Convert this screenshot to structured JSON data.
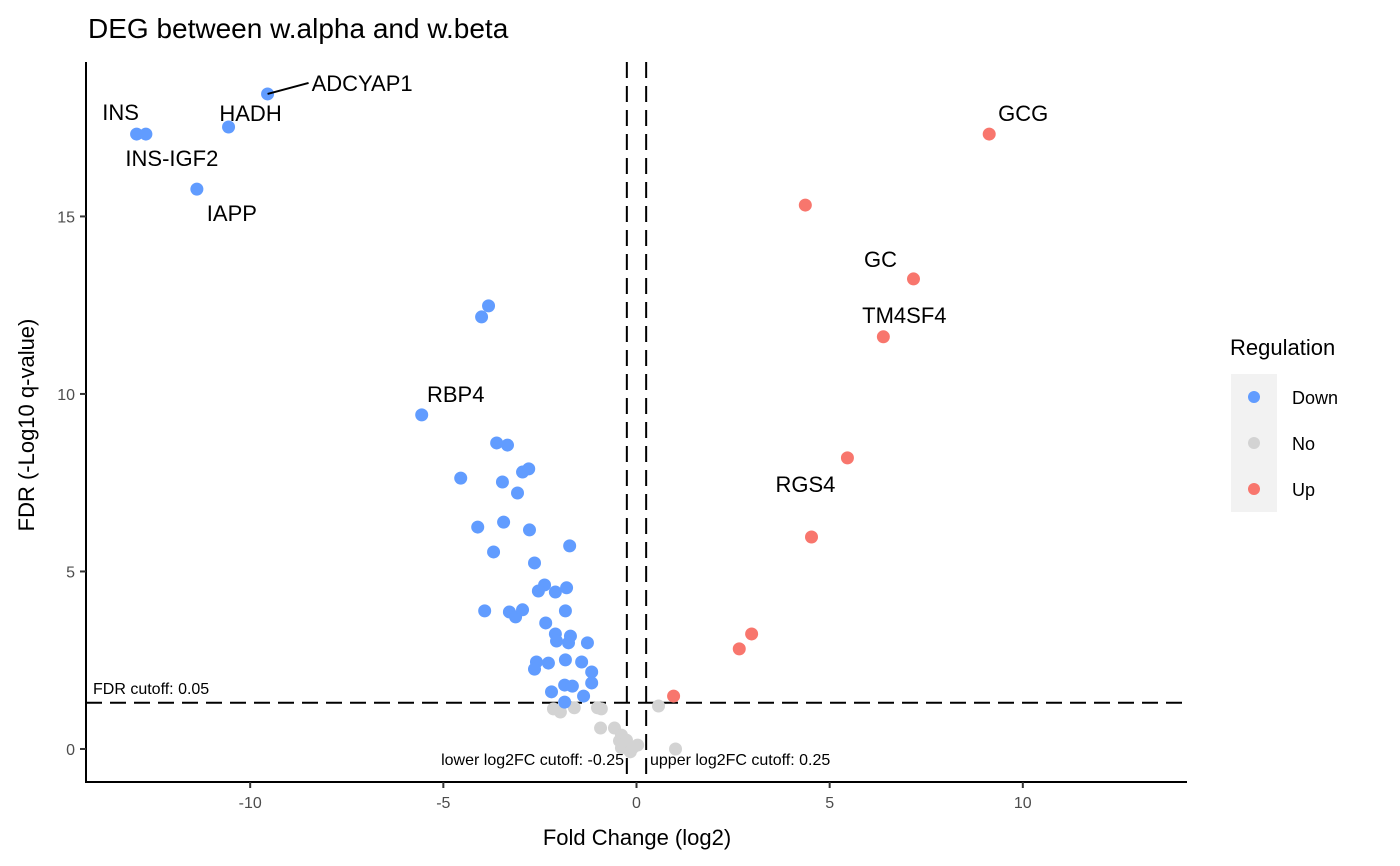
{
  "chart_data": {
    "type": "scatter",
    "title": "DEG between w.alpha and w.beta",
    "xlabel": "Fold Change (log2)",
    "ylabel": "FDR (-Log10 q-value)",
    "xlim": [
      -14.25,
      14.25
    ],
    "ylim": [
      -0.93,
      19.35
    ],
    "x_ticks": [
      -10,
      -5,
      0,
      5,
      10
    ],
    "x_tick_labels": [
      "-10",
      "-5",
      "0",
      "5",
      "10"
    ],
    "y_ticks": [
      0,
      5,
      10,
      15
    ],
    "y_tick_labels": [
      "0",
      "5",
      "10",
      "15"
    ],
    "grid": false,
    "cutoffs": {
      "fdr": {
        "value": 1.301,
        "label": "FDR cutoff: 0.05"
      },
      "lower": {
        "value": -0.25,
        "label": "lower log2FC cutoff: -0.25"
      },
      "upper": {
        "value": 0.25,
        "label": "upper log2FC cutoff: 0.25"
      }
    },
    "legend": {
      "title": "Regulation",
      "position": "right",
      "entries": [
        {
          "label": "Down",
          "color": "#619CFF"
        },
        {
          "label": "No",
          "color": "#D3D3D3"
        },
        {
          "label": "Up",
          "color": "#F8766D"
        }
      ]
    },
    "series": [
      {
        "name": "Down",
        "color": "#619CFF",
        "points": [
          {
            "x": -9.55,
            "y": 18.45,
            "label": "ADCYAP1"
          },
          {
            "x": -10.56,
            "y": 17.52,
            "label": "HADH"
          },
          {
            "x": -12.94,
            "y": 17.32,
            "label": "INS"
          },
          {
            "x": -12.7,
            "y": 17.32,
            "label": "INS-IGF2"
          },
          {
            "x": -11.38,
            "y": 15.77,
            "label": "IAPP"
          },
          {
            "x": -5.56,
            "y": 9.41,
            "label": "RBP4"
          },
          {
            "x": -3.83,
            "y": 12.48
          },
          {
            "x": -4.01,
            "y": 12.17
          },
          {
            "x": -3.62,
            "y": 8.62
          },
          {
            "x": -3.34,
            "y": 8.56
          },
          {
            "x": -4.55,
            "y": 7.63
          },
          {
            "x": -3.47,
            "y": 7.52
          },
          {
            "x": -2.95,
            "y": 7.8
          },
          {
            "x": -2.79,
            "y": 7.89
          },
          {
            "x": -3.08,
            "y": 7.21
          },
          {
            "x": -4.11,
            "y": 6.25
          },
          {
            "x": -3.44,
            "y": 6.39
          },
          {
            "x": -2.77,
            "y": 6.17
          },
          {
            "x": -1.73,
            "y": 5.72
          },
          {
            "x": -3.7,
            "y": 5.55
          },
          {
            "x": -2.64,
            "y": 5.24
          },
          {
            "x": -2.38,
            "y": 4.62
          },
          {
            "x": -2.54,
            "y": 4.45
          },
          {
            "x": -2.1,
            "y": 4.42
          },
          {
            "x": -1.81,
            "y": 4.54
          },
          {
            "x": -3.93,
            "y": 3.89
          },
          {
            "x": -3.29,
            "y": 3.86
          },
          {
            "x": -3.13,
            "y": 3.72
          },
          {
            "x": -2.95,
            "y": 3.92
          },
          {
            "x": -1.84,
            "y": 3.89
          },
          {
            "x": -2.35,
            "y": 3.55
          },
          {
            "x": -2.1,
            "y": 3.24
          },
          {
            "x": -1.71,
            "y": 3.18
          },
          {
            "x": -1.76,
            "y": 2.99
          },
          {
            "x": -1.27,
            "y": 2.99
          },
          {
            "x": -2.07,
            "y": 3.04
          },
          {
            "x": -2.59,
            "y": 2.45
          },
          {
            "x": -2.64,
            "y": 2.25
          },
          {
            "x": -2.28,
            "y": 2.42
          },
          {
            "x": -1.84,
            "y": 2.51
          },
          {
            "x": -1.42,
            "y": 2.45
          },
          {
            "x": -1.16,
            "y": 2.17
          },
          {
            "x": -1.16,
            "y": 1.86
          },
          {
            "x": -2.2,
            "y": 1.61
          },
          {
            "x": -1.86,
            "y": 1.8
          },
          {
            "x": -1.66,
            "y": 1.77
          },
          {
            "x": -1.37,
            "y": 1.49
          },
          {
            "x": -1.86,
            "y": 1.32
          }
        ]
      },
      {
        "name": "No",
        "color": "#D3D3D3",
        "points": [
          {
            "x": -2.15,
            "y": 1.13
          },
          {
            "x": -1.97,
            "y": 1.04
          },
          {
            "x": -1.61,
            "y": 1.16
          },
          {
            "x": -1.01,
            "y": 1.16
          },
          {
            "x": -0.91,
            "y": 1.13
          },
          {
            "x": 0.57,
            "y": 1.21
          },
          {
            "x": -0.93,
            "y": 0.59
          },
          {
            "x": -0.57,
            "y": 0.59
          },
          {
            "x": -0.39,
            "y": 0.39
          },
          {
            "x": -0.44,
            "y": 0.23
          },
          {
            "x": -0.26,
            "y": 0.25
          },
          {
            "x": -0.39,
            "y": 0.03
          },
          {
            "x": -0.1,
            "y": 0.03
          },
          {
            "x": 0.03,
            "y": 0.11
          },
          {
            "x": -0.16,
            "y": -0.08
          },
          {
            "x": 1.01,
            "y": 0.0
          }
        ]
      },
      {
        "name": "Up",
        "color": "#F8766D",
        "points": [
          {
            "x": 9.13,
            "y": 17.32,
            "label": "GCG"
          },
          {
            "x": 4.37,
            "y": 15.32
          },
          {
            "x": 7.17,
            "y": 13.24,
            "label": "GC"
          },
          {
            "x": 6.39,
            "y": 11.61,
            "label": "TM4SF4"
          },
          {
            "x": 5.46,
            "y": 8.2,
            "label": "RGS4"
          },
          {
            "x": 4.53,
            "y": 5.97
          },
          {
            "x": 2.98,
            "y": 3.24
          },
          {
            "x": 2.66,
            "y": 2.82
          },
          {
            "x": 0.96,
            "y": 1.49
          }
        ]
      }
    ]
  }
}
